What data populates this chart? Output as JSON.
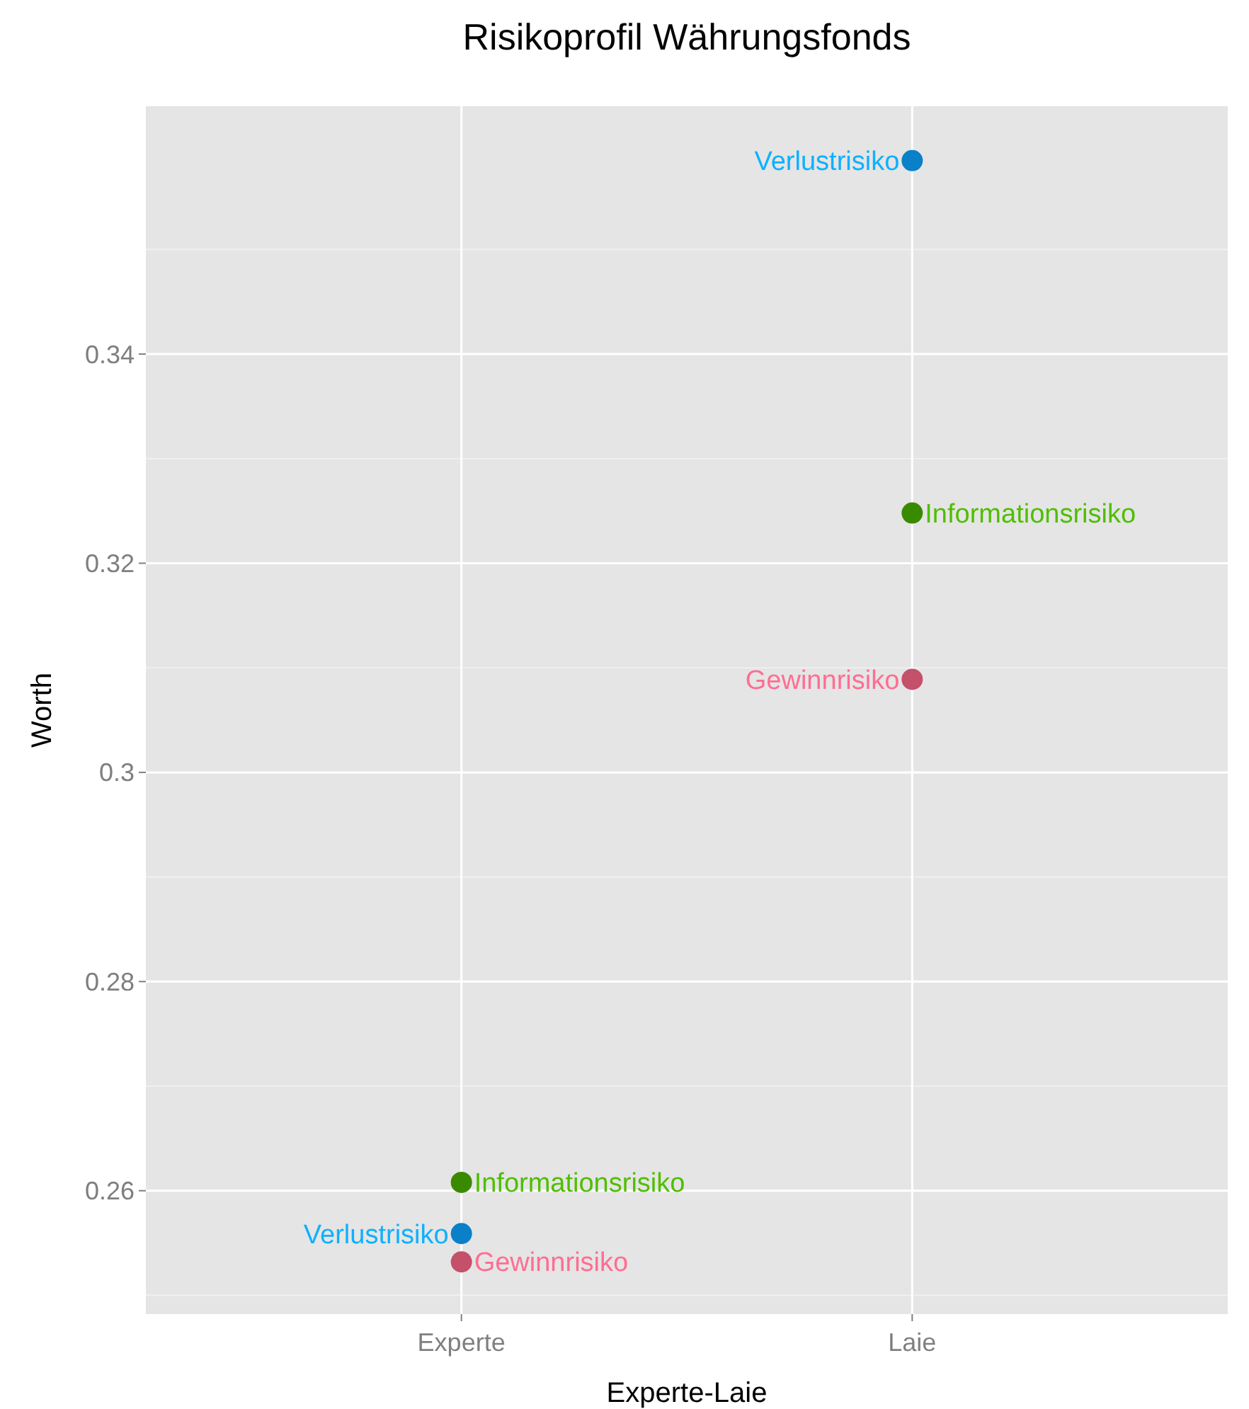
{
  "chart_data": {
    "type": "scatter",
    "title": "Risikoprofil Währungsfonds",
    "xlabel": "Experte-Laie",
    "ylabel": "Worth",
    "categories": [
      "Experte",
      "Laie"
    ],
    "series": [
      {
        "name": "Verlustrisiko",
        "color": "#0a80c8",
        "values": [
          0.2559,
          0.3585
        ]
      },
      {
        "name": "Informationsrisiko",
        "color": "#3a8a00",
        "values": [
          0.2608,
          0.3248
        ]
      },
      {
        "name": "Gewinnrisiko",
        "color": "#c4506a",
        "values": [
          0.2532,
          0.3089
        ]
      }
    ],
    "ylim": [
      0.2482,
      0.3637
    ],
    "yticks": [
      0.26,
      0.28,
      0.3,
      0.32,
      0.34
    ],
    "grid": true,
    "marker": "circle"
  }
}
